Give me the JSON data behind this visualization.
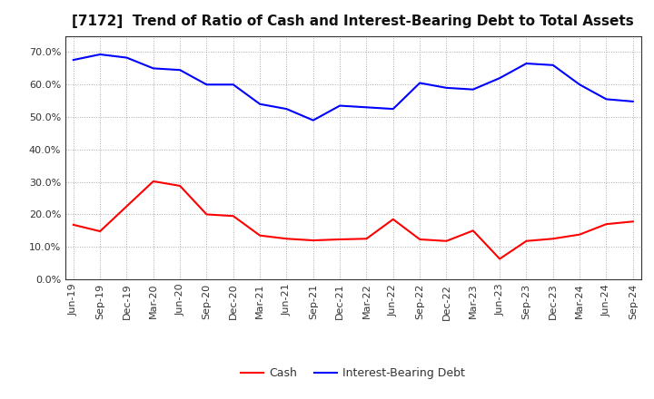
{
  "title": "[7172]  Trend of Ratio of Cash and Interest-Bearing Debt to Total Assets",
  "x_labels": [
    "Jun-19",
    "Sep-19",
    "Dec-19",
    "Mar-20",
    "Jun-20",
    "Sep-20",
    "Dec-20",
    "Mar-21",
    "Jun-21",
    "Sep-21",
    "Dec-21",
    "Mar-22",
    "Jun-22",
    "Sep-22",
    "Dec-22",
    "Mar-23",
    "Jun-23",
    "Sep-23",
    "Dec-23",
    "Mar-24",
    "Jun-24",
    "Sep-24"
  ],
  "cash": [
    0.168,
    0.148,
    0.225,
    0.302,
    0.288,
    0.2,
    0.195,
    0.135,
    0.125,
    0.12,
    0.123,
    0.125,
    0.185,
    0.123,
    0.118,
    0.15,
    0.063,
    0.118,
    0.125,
    0.138,
    0.17,
    0.178
  ],
  "ibd": [
    0.676,
    0.693,
    0.683,
    0.65,
    0.645,
    0.6,
    0.6,
    0.54,
    0.525,
    0.49,
    0.535,
    0.53,
    0.525,
    0.605,
    0.59,
    0.585,
    0.62,
    0.665,
    0.66,
    0.6,
    0.555,
    0.548
  ],
  "cash_color": "#ff0000",
  "ibd_color": "#0000ff",
  "bg_color": "#ffffff",
  "plot_bg_color": "#ffffff",
  "grid_color": "#aaaaaa",
  "ylim": [
    0.0,
    0.75
  ],
  "yticks": [
    0.0,
    0.1,
    0.2,
    0.3,
    0.4,
    0.5,
    0.6,
    0.7
  ],
  "legend_cash": "Cash",
  "legend_ibd": "Interest-Bearing Debt",
  "title_fontsize": 11,
  "tick_fontsize": 8,
  "legend_fontsize": 9
}
